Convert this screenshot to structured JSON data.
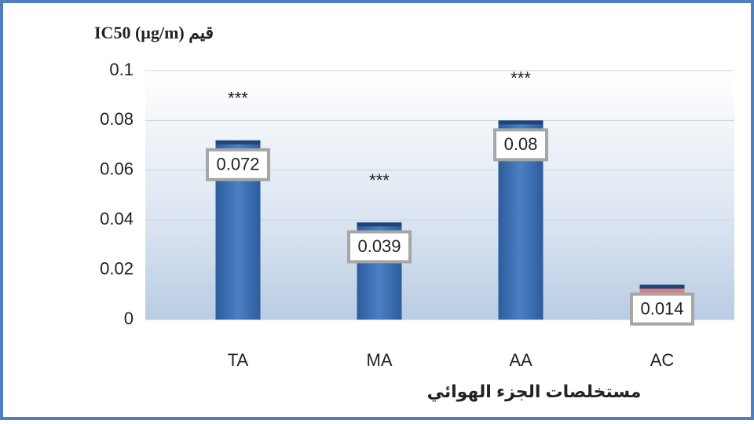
{
  "chart_data": {
    "type": "bar",
    "title": "IC50 (µg/m) قيم",
    "x_label": "مستخلصات الجزء الهوائي",
    "categories": [
      "TA",
      "MA",
      "AA",
      "AC"
    ],
    "values": [
      0.072,
      0.039,
      0.08,
      0.014
    ],
    "colors": [
      "#3a6db0",
      "#3a6db0",
      "#3a6db0",
      "#d9807e"
    ],
    "significance": [
      "***",
      "***",
      "***",
      null
    ],
    "ylim": [
      0,
      0.1
    ],
    "yticks": [
      0,
      0.02,
      0.04,
      0.06,
      0.08,
      0.1
    ],
    "grid": true
  }
}
